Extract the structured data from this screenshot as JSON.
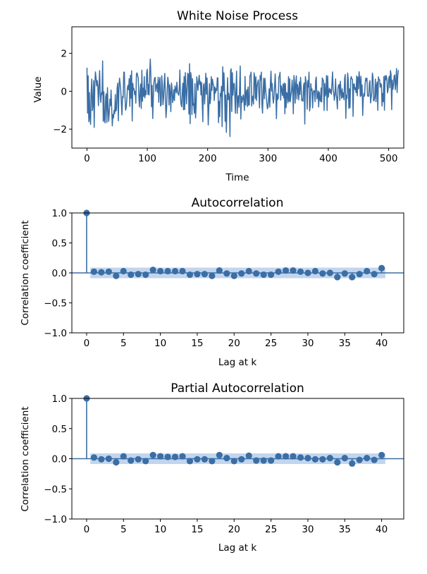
{
  "colors": {
    "series": "#3a6ea5",
    "band": "#aec7e8",
    "stem": "#3a6ea5",
    "baseline": "#3a6ea5"
  },
  "chart_data": [
    {
      "type": "line",
      "title": "White Noise Process",
      "xlabel": "Time",
      "ylabel": "Value",
      "xlim": [
        -25,
        525
      ],
      "ylim": [
        -3.0,
        3.4
      ],
      "xticks": [
        0,
        100,
        200,
        300,
        400,
        500
      ],
      "xtick_labels": [
        "0",
        "100",
        "200",
        "300",
        "400",
        "500"
      ],
      "yticks": [
        -2,
        0,
        2
      ],
      "ytick_labels": [
        "−2",
        "0",
        "2"
      ],
      "n": 500,
      "series": [
        {
          "x_start": 0,
          "x_step": 1,
          "y": [
            1.24,
            -1.16,
            0.82,
            -1.61,
            -0.07,
            -1.42,
            -1.75,
            -0.05,
            0.64,
            -1.02,
            -0.74,
            0.56,
            -1.91,
            0.3,
            1.02,
            0.74,
            0.28,
            0.57,
            0.27,
            -0.76,
            0.29,
            1.09,
            -0.21,
            -0.6,
            -0.07,
            -0.17,
            1.6,
            -1.59,
            -0.03,
            -1.53,
            -1.67,
            -0.3,
            -0.13,
            -1.65,
            0.19,
            -0.89,
            -1.59,
            -1.12,
            -0.42,
            -0.76,
            0.06,
            -0.93,
            -1.83,
            -1.23,
            -1.41,
            -1.0,
            -1.18,
            -0.17,
            -1.05,
            -0.95,
            0.16,
            0.43,
            -1.56,
            0.15,
            0.69,
            0.39,
            0.06,
            -0.61,
            -1.25,
            -0.28,
            -0.34,
            1.01,
            1.0,
            -0.27,
            -1.0,
            -0.89,
            -0.47,
            0.17,
            0.31,
            0.08,
            0.66,
            -0.8,
            0.84,
            -0.37,
            1.08,
            -1.57,
            0.42,
            0.08,
            0.13,
            -0.18,
            -0.01,
            -0.63,
            0.9,
            0.97,
            0.81,
            0.7,
            -0.29,
            -0.83,
            -0.03,
            0.38,
            -0.91,
            1.11,
            -0.53,
            0.16,
            -0.27,
            0.77,
            -0.35,
            0.04,
            -0.18,
            0.99,
            1.16,
            -0.17,
            0.36,
            -0.2,
            0.99,
            1.7,
            0.72,
            -0.82,
            0.31,
            -1.44,
            -0.35,
            0.47,
            0.69,
            0.73,
            -0.01,
            0.27,
            0.39,
            -0.05,
            0.74,
            -0.59,
            0.52,
            0.73,
            -0.78,
            -0.72,
            0.82,
            0.3,
            -0.71,
            -0.36,
            0.47,
            0.94,
            -0.4,
            -1.39,
            -0.89,
            0.1,
            0.74,
            0.46,
            -0.73,
            0.34,
            -0.09,
            -1.08,
            0.43,
            0.18,
            -0.6,
            -0.4,
            0.09,
            -0.49,
            0.28,
            0.1,
            -0.09,
            0.48,
            0.02,
            -0.13,
            -0.21,
            0.1,
            1.12,
            -0.33,
            -0.7,
            -0.82,
            -0.01,
            0.43,
            -0.98,
            0.77,
            -0.97,
            0.98,
            0.13,
            -0.67,
            0.18,
            0.95,
            0.88,
            -1.21,
            1.45,
            -1.71,
            0.98,
            0.7,
            -1.23,
            0.65,
            -0.74,
            -0.66,
            -1.16,
            0.4,
            -1.41,
            -0.72,
            0.76,
            0.45,
            0.05,
            0.52,
            0.84,
            0.35,
            0.52,
            -0.2,
            0.46,
            -0.5,
            -1.61,
            0.29,
            0.41,
            -0.68,
            0.08,
            0.95,
            -0.16,
            0.7,
            -0.34,
            -1.78,
            -0.78,
            0.4,
            -0.66,
            -0.38,
            0.77,
            0.04,
            0.63,
            0.39,
            0.29,
            -0.49,
            0.23,
            -0.09,
            0.14,
            0.04,
            0.71,
            0.7,
            -1.66,
            -0.54,
            -1.34,
            -0.11,
            -0.26,
            0.26,
            -1.87,
            1.29,
            0.01,
            0.97,
            0.07,
            -1.59,
            -0.2,
            -2.17,
            -0.78,
            0.71,
            -0.45,
            -0.11,
            -0.36,
            -2.39,
            1.09,
            1.18,
            -1.07,
            0.98,
            -0.21,
            0.37,
            0.42,
            -0.21,
            -1.16,
            0.15,
            1.06,
            -1.17,
            -0.37,
            -0.23,
            -0.84,
            0.18,
            1.33,
            -1.47,
            -0.27,
            -0.59,
            -0.39,
            -0.19,
            -0.5,
            -1.01,
            0.78,
            -0.73,
            -0.11,
            0.08,
            -0.81,
            0.22,
            -0.74,
            -0.72,
            0.81,
            0.84,
            1.01,
            -0.78,
            -0.35,
            -0.25,
            -0.68,
            0.97,
            0.74,
            -0.39,
            0.76,
            -0.49,
            0.27,
            0.47,
            0.6,
            -0.16,
            -0.88,
            0.83,
            0.59,
            1.01,
            -0.71,
            -1.16,
            0.05,
            0.69,
            -0.4,
            0.68,
            0.17,
            -0.24,
            -0.58,
            -0.93,
            -0.83,
            -0.38,
            0.13,
            -0.84,
            0.38,
            1.06,
            0.01,
            0.41,
            -0.33,
            -0.63,
            -0.29,
            0.32,
            0.91,
            -0.07,
            -1.45,
            -0.14,
            -0.44,
            -0.36,
            0.74,
            0.8,
            1.0,
            -0.47,
            0.29,
            0.09,
            -0.22,
            0.38,
            -0.35,
            0.43,
            -1.19,
            0.4,
            -0.87,
            -0.07,
            -0.15,
            -0.62,
            0.77,
            -0.53,
            0.66,
            -0.56,
            -0.23,
            -0.02,
            0.59,
            0.04,
            -1.19,
            0.83,
            0.48,
            -0.63,
            0.36,
            0.81,
            -0.41,
            0.36,
            0.11,
            -0.46,
            0.49,
            -0.17,
            0.73,
            0.2,
            -0.5,
            -0.41,
            -0.53,
            0.31,
            0.44,
            -1.73,
            0.77,
            0.55,
            0.34,
            -0.95,
            0.56,
            0.22,
            1.01,
            -1.04,
            -0.78,
            0.4,
            0.04,
            0.12,
            -0.88,
            -0.05,
            0.03,
            0.02,
            -0.55,
            0.59,
            0.75,
            -0.41,
            -0.29,
            0.02,
            -0.83,
            -0.04,
            -0.43,
            -0.54,
            0.17,
            -0.57,
            0.7,
            0.61,
            0.56,
            -1.02,
            0.41,
            -0.25,
            -0.08,
            0.83,
            -1.02,
            0.8,
            -0.31,
            0.0,
            0.16,
            -0.08,
            0.09,
            -0.16,
            0.39,
            1.02,
            0.07,
            -0.11,
            -0.48,
            -0.17,
            0.65,
            -0.14,
            -0.4,
            -0.94,
            0.14,
            0.32,
            0.36,
            -0.48,
            0.53,
            -0.03,
            -0.38,
            0.13,
            -0.32,
            -0.09,
            -0.45,
            0.68,
            0.88,
            -1.43,
            -0.21,
            -0.38,
            0.96,
            0.63,
            -0.91,
            0.12,
            -0.87,
            0.64,
            0.77,
            0.65,
            0.62,
            -1.33,
            0.39,
            0.38,
            0.08,
            0.18,
            -0.08,
            0.81,
            -0.24,
            0.75,
            0.13,
            1.03,
            0.61,
            -0.28,
            0.79,
            -0.24,
            0.33,
            -1.28,
            -0.35,
            -0.11,
            -0.26,
            0.39,
            0.69,
            0.55,
            0.69,
            -0.25,
            -0.25,
            -0.27,
            0.42,
            0.56,
            -0.62,
            -0.35,
            -0.06,
            0.96,
            0.75,
            -0.51,
            -0.49,
            -0.29,
            0.64,
            -0.56,
            0.31,
            0.49,
            -1.01,
            0.76,
            0.6,
            0.61,
            0.21,
            0.4,
            0.35,
            -0.78,
            -0.12,
            -0.55,
            0.77,
            -1.0,
            0.81,
            0.59,
            0.83,
            0.65,
            -0.09,
            0.07,
            0.64,
            0.79,
            0.18,
            1.09,
            0.89,
            -0.97,
            0.59,
            0.1,
            0.31,
            0.79,
            0.86,
            0.08,
            0.51,
            1.2,
            -0.07,
            0.78,
            1.12
          ]
        }
      ]
    },
    {
      "type": "stem",
      "title": "Autocorrelation",
      "xlabel": "Lag at k",
      "ylabel": "Correlation coefficient",
      "xlim": [
        -2,
        43
      ],
      "ylim": [
        -1.0,
        1.0
      ],
      "xticks": [
        0,
        5,
        10,
        15,
        20,
        25,
        30,
        35,
        40
      ],
      "xtick_labels": [
        "0",
        "5",
        "10",
        "15",
        "20",
        "25",
        "30",
        "35",
        "40"
      ],
      "yticks": [
        -1.0,
        -0.5,
        0.0,
        0.5,
        1.0
      ],
      "ytick_labels": [
        "−1.0",
        "−0.5",
        "0.0",
        "0.5",
        "1.0"
      ],
      "confidence_band": 0.088,
      "lags": [
        0,
        1,
        2,
        3,
        4,
        5,
        6,
        7,
        8,
        9,
        10,
        11,
        12,
        13,
        14,
        15,
        16,
        17,
        18,
        19,
        20,
        21,
        22,
        23,
        24,
        25,
        26,
        27,
        28,
        29,
        30,
        31,
        32,
        33,
        34,
        35,
        36,
        37,
        38,
        39,
        40
      ],
      "values": [
        1.0,
        0.02,
        0.01,
        0.02,
        -0.05,
        0.03,
        -0.03,
        -0.02,
        -0.03,
        0.05,
        0.03,
        0.03,
        0.03,
        0.03,
        -0.03,
        -0.02,
        -0.02,
        -0.05,
        0.04,
        -0.01,
        -0.05,
        -0.01,
        0.03,
        -0.01,
        -0.03,
        -0.03,
        0.02,
        0.04,
        0.04,
        0.02,
        0.0,
        0.03,
        -0.01,
        0.0,
        -0.07,
        -0.01,
        -0.07,
        -0.02,
        0.03,
        -0.02,
        0.08
      ]
    },
    {
      "type": "stem",
      "title": "Partial Autocorrelation",
      "xlabel": "Lag at k",
      "ylabel": "Correlation coefficient",
      "xlim": [
        -2,
        43
      ],
      "ylim": [
        -1.0,
        1.0
      ],
      "xticks": [
        0,
        5,
        10,
        15,
        20,
        25,
        30,
        35,
        40
      ],
      "xtick_labels": [
        "0",
        "5",
        "10",
        "15",
        "20",
        "25",
        "30",
        "35",
        "40"
      ],
      "yticks": [
        -1.0,
        -0.5,
        0.0,
        0.5,
        1.0
      ],
      "ytick_labels": [
        "−1.0",
        "−0.5",
        "0.0",
        "0.5",
        "1.0"
      ],
      "confidence_band": 0.088,
      "lags": [
        0,
        1,
        2,
        3,
        4,
        5,
        6,
        7,
        8,
        9,
        10,
        11,
        12,
        13,
        14,
        15,
        16,
        17,
        18,
        19,
        20,
        21,
        22,
        23,
        24,
        25,
        26,
        27,
        28,
        29,
        30,
        31,
        32,
        33,
        34,
        35,
        36,
        37,
        38,
        39,
        40
      ],
      "values": [
        1.0,
        0.02,
        -0.01,
        0.0,
        -0.06,
        0.04,
        -0.03,
        -0.01,
        -0.04,
        0.06,
        0.04,
        0.03,
        0.03,
        0.04,
        -0.04,
        -0.01,
        -0.01,
        -0.04,
        0.06,
        0.01,
        -0.04,
        -0.01,
        0.05,
        -0.03,
        -0.03,
        -0.03,
        0.04,
        0.04,
        0.04,
        0.02,
        0.01,
        -0.01,
        -0.01,
        0.01,
        -0.06,
        0.01,
        -0.08,
        -0.02,
        0.01,
        -0.02,
        0.06
      ]
    }
  ]
}
